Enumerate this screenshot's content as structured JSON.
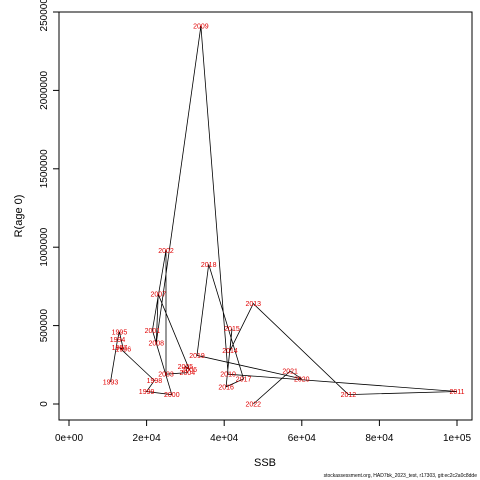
{
  "chart_data": {
    "type": "line",
    "xlabel": "SSB",
    "ylabel": "R(age 0)",
    "xlim": [
      0,
      100000
    ],
    "ylim": [
      0,
      2500000
    ],
    "x_ticks": [
      {
        "value": 0,
        "label": "0e+00"
      },
      {
        "value": 20000,
        "label": "2e+04"
      },
      {
        "value": 40000,
        "label": "4e+04"
      },
      {
        "value": 60000,
        "label": "6e+04"
      },
      {
        "value": 80000,
        "label": "8e+04"
      },
      {
        "value": 100000,
        "label": "1e+05"
      }
    ],
    "y_ticks": [
      {
        "value": 0,
        "label": "0"
      },
      {
        "value": 500000,
        "label": "500000"
      },
      {
        "value": 1000000,
        "label": "1000000"
      },
      {
        "value": 1500000,
        "label": "1500000"
      },
      {
        "value": 2000000,
        "label": "2000000"
      },
      {
        "value": 2500000,
        "label": "2500000"
      }
    ],
    "grid": false,
    "legend": "none",
    "line_color": "#000000",
    "label_color": "#e00000",
    "points": [
      {
        "label": "1993",
        "x": 10700,
        "y": 140000
      },
      {
        "label": "1994",
        "x": 12500,
        "y": 410000
      },
      {
        "label": "1995",
        "x": 13000,
        "y": 460000
      },
      {
        "label": "1996",
        "x": 14000,
        "y": 350000
      },
      {
        "label": "1997",
        "x": 13000,
        "y": 360000
      },
      {
        "label": "1998",
        "x": 22000,
        "y": 150000
      },
      {
        "label": "1999",
        "x": 20000,
        "y": 80000
      },
      {
        "label": "2000",
        "x": 26500,
        "y": 60000
      },
      {
        "label": "2001",
        "x": 21500,
        "y": 470000
      },
      {
        "label": "2002",
        "x": 25000,
        "y": 980000
      },
      {
        "label": "2003",
        "x": 25000,
        "y": 190000
      },
      {
        "label": "2004",
        "x": 30500,
        "y": 200000
      },
      {
        "label": "2005",
        "x": 30000,
        "y": 240000
      },
      {
        "label": "2006",
        "x": 31000,
        "y": 220000
      },
      {
        "label": "2007",
        "x": 23000,
        "y": 700000
      },
      {
        "label": "2008",
        "x": 22500,
        "y": 390000
      },
      {
        "label": "2009",
        "x": 34000,
        "y": 2410000
      },
      {
        "label": "2010",
        "x": 41000,
        "y": 190000
      },
      {
        "label": "2011",
        "x": 100000,
        "y": 80000
      },
      {
        "label": "2012",
        "x": 72000,
        "y": 60000
      },
      {
        "label": "2013",
        "x": 47500,
        "y": 640000
      },
      {
        "label": "2014",
        "x": 41500,
        "y": 340000
      },
      {
        "label": "2015",
        "x": 42000,
        "y": 480000
      },
      {
        "label": "2016",
        "x": 40500,
        "y": 110000
      },
      {
        "label": "2017",
        "x": 45000,
        "y": 160000
      },
      {
        "label": "2018",
        "x": 36000,
        "y": 890000
      },
      {
        "label": "2019",
        "x": 33000,
        "y": 310000
      },
      {
        "label": "2020",
        "x": 60000,
        "y": 160000
      },
      {
        "label": "2021",
        "x": 57000,
        "y": 210000
      },
      {
        "label": "2022",
        "x": 47500,
        "y": 0
      }
    ],
    "footnote": "stockassessment.org, HAD7bk_2023_test, r17303, git:ec2c2a0c8dde"
  }
}
